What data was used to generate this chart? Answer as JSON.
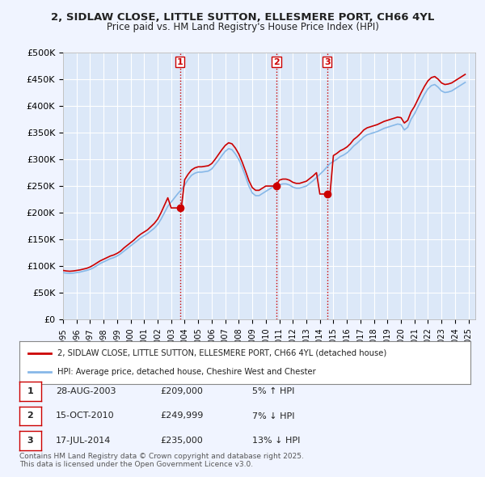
{
  "title_line1": "2, SIDLAW CLOSE, LITTLE SUTTON, ELLESMERE PORT, CH66 4YL",
  "title_line2": "Price paid vs. HM Land Registry's House Price Index (HPI)",
  "ylabel_ticks": [
    "£0",
    "£50K",
    "£100K",
    "£150K",
    "£200K",
    "£250K",
    "£300K",
    "£350K",
    "£400K",
    "£450K",
    "£500K"
  ],
  "ytick_values": [
    0,
    50000,
    100000,
    150000,
    200000,
    250000,
    300000,
    350000,
    400000,
    450000,
    500000
  ],
  "ylim": [
    0,
    500000
  ],
  "xlim_start": 1995.0,
  "xlim_end": 2025.5,
  "background_color": "#f0f4ff",
  "plot_bg_color": "#dce8f8",
  "grid_color": "#ffffff",
  "hpi_line_color": "#87b8e8",
  "price_line_color": "#cc0000",
  "vline_color": "#cc0000",
  "vline_style": ":",
  "transaction_markers": [
    {
      "year": 2003.65,
      "price": 209000,
      "label": "1"
    },
    {
      "year": 2010.79,
      "price": 249999,
      "label": "2"
    },
    {
      "year": 2014.54,
      "price": 235000,
      "label": "3"
    }
  ],
  "legend_line1": "2, SIDLAW CLOSE, LITTLE SUTTON, ELLESMERE PORT, CH66 4YL (detached house)",
  "legend_line2": "HPI: Average price, detached house, Cheshire West and Chester",
  "table_rows": [
    {
      "num": "1",
      "date": "28-AUG-2003",
      "price": "£209,000",
      "change": "5% ↑ HPI"
    },
    {
      "num": "2",
      "date": "15-OCT-2010",
      "price": "£249,999",
      "change": "7% ↓ HPI"
    },
    {
      "num": "3",
      "date": "17-JUL-2014",
      "price": "£235,000",
      "change": "13% ↓ HPI"
    }
  ],
  "footer": "Contains HM Land Registry data © Crown copyright and database right 2025.\nThis data is licensed under the Open Government Licence v3.0.",
  "hpi_data": {
    "years": [
      1995.0,
      1995.25,
      1995.5,
      1995.75,
      1996.0,
      1996.25,
      1996.5,
      1996.75,
      1997.0,
      1997.25,
      1997.5,
      1997.75,
      1998.0,
      1998.25,
      1998.5,
      1998.75,
      1999.0,
      1999.25,
      1999.5,
      1999.75,
      2000.0,
      2000.25,
      2000.5,
      2000.75,
      2001.0,
      2001.25,
      2001.5,
      2001.75,
      2002.0,
      2002.25,
      2002.5,
      2002.75,
      2003.0,
      2003.25,
      2003.5,
      2003.75,
      2004.0,
      2004.25,
      2004.5,
      2004.75,
      2005.0,
      2005.25,
      2005.5,
      2005.75,
      2006.0,
      2006.25,
      2006.5,
      2006.75,
      2007.0,
      2007.25,
      2007.5,
      2007.75,
      2008.0,
      2008.25,
      2008.5,
      2008.75,
      2009.0,
      2009.25,
      2009.5,
      2009.75,
      2010.0,
      2010.25,
      2010.5,
      2010.75,
      2011.0,
      2011.25,
      2011.5,
      2011.75,
      2012.0,
      2012.25,
      2012.5,
      2012.75,
      2013.0,
      2013.25,
      2013.5,
      2013.75,
      2014.0,
      2014.25,
      2014.5,
      2014.75,
      2015.0,
      2015.25,
      2015.5,
      2015.75,
      2016.0,
      2016.25,
      2016.5,
      2016.75,
      2017.0,
      2017.25,
      2017.5,
      2017.75,
      2018.0,
      2018.25,
      2018.5,
      2018.75,
      2019.0,
      2019.25,
      2019.5,
      2019.75,
      2020.0,
      2020.25,
      2020.5,
      2020.75,
      2021.0,
      2021.25,
      2021.5,
      2021.75,
      2022.0,
      2022.25,
      2022.5,
      2022.75,
      2023.0,
      2023.25,
      2023.5,
      2023.75,
      2024.0,
      2024.25,
      2024.5,
      2024.75
    ],
    "values": [
      88000,
      87000,
      86500,
      87000,
      88000,
      89000,
      90500,
      92000,
      94000,
      97000,
      101000,
      105000,
      108000,
      111000,
      114000,
      116000,
      119000,
      123000,
      128000,
      133000,
      138000,
      143000,
      148000,
      153000,
      157000,
      161000,
      166000,
      171000,
      178000,
      188000,
      200000,
      212000,
      220000,
      228000,
      236000,
      243000,
      252000,
      262000,
      270000,
      274000,
      276000,
      276000,
      277000,
      278000,
      282000,
      290000,
      298000,
      307000,
      315000,
      320000,
      318000,
      310000,
      300000,
      285000,
      268000,
      250000,
      237000,
      232000,
      232000,
      236000,
      240000,
      244000,
      248000,
      250000,
      252000,
      254000,
      254000,
      252000,
      248000,
      246000,
      246000,
      248000,
      250000,
      255000,
      260000,
      266000,
      272000,
      278000,
      285000,
      292000,
      296000,
      300000,
      305000,
      308000,
      312000,
      318000,
      325000,
      330000,
      336000,
      342000,
      346000,
      348000,
      350000,
      352000,
      355000,
      358000,
      360000,
      362000,
      364000,
      366000,
      365000,
      355000,
      360000,
      375000,
      385000,
      398000,
      410000,
      422000,
      432000,
      438000,
      440000,
      435000,
      428000,
      425000,
      426000,
      428000,
      432000,
      436000,
      440000,
      444000
    ]
  },
  "price_paid_data": {
    "years": [
      1995.0,
      1995.25,
      1995.5,
      1995.75,
      1996.0,
      1996.25,
      1996.5,
      1996.75,
      1997.0,
      1997.25,
      1997.5,
      1997.75,
      1998.0,
      1998.25,
      1998.5,
      1998.75,
      1999.0,
      1999.25,
      1999.5,
      1999.75,
      2000.0,
      2000.25,
      2000.5,
      2000.75,
      2001.0,
      2001.25,
      2001.5,
      2001.75,
      2002.0,
      2002.25,
      2002.5,
      2002.75,
      2003.0,
      2003.25,
      2003.5,
      2003.75,
      2004.0,
      2004.25,
      2004.5,
      2004.75,
      2005.0,
      2005.25,
      2005.5,
      2005.75,
      2006.0,
      2006.25,
      2006.5,
      2006.75,
      2007.0,
      2007.25,
      2007.5,
      2007.75,
      2008.0,
      2008.25,
      2008.5,
      2008.75,
      2009.0,
      2009.25,
      2009.5,
      2009.75,
      2010.0,
      2010.25,
      2010.5,
      2010.75,
      2011.0,
      2011.25,
      2011.5,
      2011.75,
      2012.0,
      2012.25,
      2012.5,
      2012.75,
      2013.0,
      2013.25,
      2013.5,
      2013.75,
      2014.0,
      2014.25,
      2014.5,
      2014.75,
      2015.0,
      2015.25,
      2015.5,
      2015.75,
      2016.0,
      2016.25,
      2016.5,
      2016.75,
      2017.0,
      2017.25,
      2017.5,
      2017.75,
      2018.0,
      2018.25,
      2018.5,
      2018.75,
      2019.0,
      2019.25,
      2019.5,
      2019.75,
      2020.0,
      2020.25,
      2020.5,
      2020.75,
      2021.0,
      2021.25,
      2021.5,
      2021.75,
      2022.0,
      2022.25,
      2022.5,
      2022.75,
      2023.0,
      2023.25,
      2023.5,
      2023.75,
      2024.0,
      2024.25,
      2024.5,
      2024.75
    ],
    "values": [
      92000,
      91000,
      90500,
      91000,
      92000,
      93000,
      94500,
      96000,
      98500,
      102000,
      106000,
      110000,
      113000,
      116000,
      119000,
      121000,
      124000,
      128000,
      134000,
      139000,
      144000,
      149000,
      155000,
      160000,
      164000,
      168000,
      174000,
      180000,
      188000,
      200000,
      214000,
      228000,
      209000,
      209000,
      209000,
      209000,
      262000,
      272000,
      280000,
      284000,
      286000,
      286000,
      287000,
      288000,
      292000,
      300000,
      309000,
      318000,
      326000,
      331000,
      329000,
      321000,
      310000,
      295000,
      278000,
      260000,
      247000,
      242000,
      242000,
      246000,
      249999,
      249999,
      249999,
      249999,
      261000,
      263000,
      263000,
      261000,
      257000,
      255000,
      255000,
      257000,
      259000,
      264000,
      269000,
      275000,
      235000,
      235000,
      235000,
      235000,
      307000,
      311000,
      316000,
      319000,
      323000,
      329000,
      337000,
      342000,
      348000,
      355000,
      359000,
      361000,
      363000,
      365000,
      368000,
      371000,
      373000,
      375000,
      377000,
      379000,
      378000,
      368000,
      373000,
      389000,
      399000,
      412000,
      425000,
      437000,
      447000,
      453000,
      455000,
      450000,
      443000,
      440000,
      441000,
      443000,
      447000,
      451000,
      455000,
      459000
    ]
  }
}
